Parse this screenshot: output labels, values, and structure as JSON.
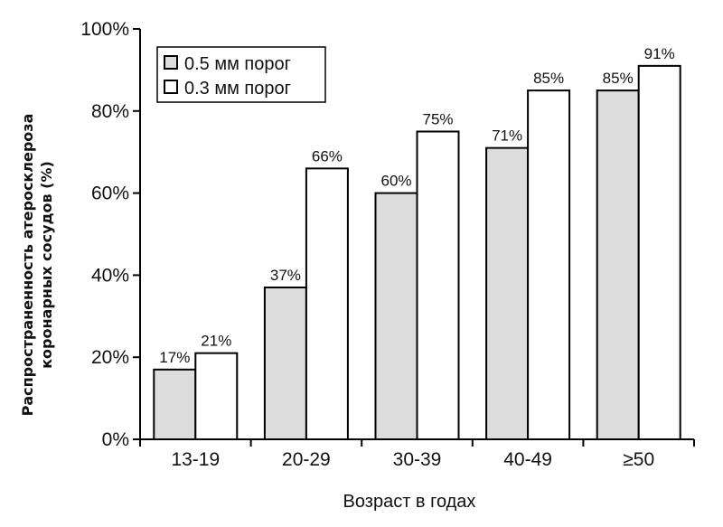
{
  "chart_data": {
    "type": "bar",
    "categories": [
      "13-19",
      "20-29",
      "30-39",
      "40-49",
      "≥50"
    ],
    "series": [
      {
        "name": "0.5 мм порог",
        "values": [
          17,
          37,
          60,
          71,
          85
        ],
        "labels": [
          "17%",
          "37%",
          "60%",
          "71%",
          "85%"
        ],
        "color": "#dcdcdc"
      },
      {
        "name": "0.3 мм порог",
        "values": [
          21,
          66,
          75,
          85,
          91
        ],
        "labels": [
          "21%",
          "66%",
          "75%",
          "85%",
          "91%"
        ],
        "color": "#ffffff"
      }
    ],
    "ylim": [
      0,
      100
    ],
    "yticks": [
      0,
      20,
      40,
      60,
      80,
      100
    ],
    "ytick_labels": [
      "0%",
      "20%",
      "40%",
      "60%",
      "80%",
      "100%"
    ],
    "xlabel": "Возраст в годах",
    "ylabel_lines": [
      "Распространенность атеросклероза",
      "коронарных сосудов (%)"
    ],
    "legend": {
      "placement": "top-left",
      "items": [
        "0.5 мм порог",
        "0.3 мм порог"
      ]
    },
    "grid": false
  }
}
